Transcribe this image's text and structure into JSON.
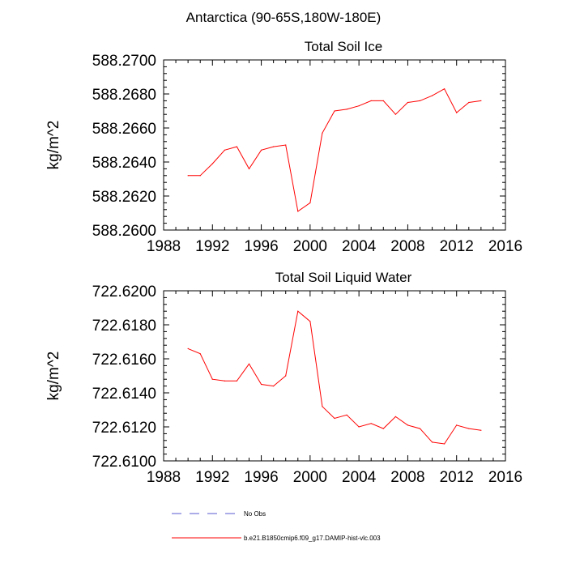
{
  "page_title": "Antarctica (90-65S,180W-180E)",
  "colors": {
    "series": "#ff0000",
    "no_obs": "#5a5ad2",
    "axis": "#000000"
  },
  "legend": [
    {
      "label": "No Obs",
      "style": "dashed",
      "color": "#5a5ad2"
    },
    {
      "label": "b.e21.B1850cmip6.f09_g17.DAMIP-hist-vlc.003",
      "style": "solid",
      "color": "#ff0000"
    }
  ],
  "chart_data": [
    {
      "type": "line",
      "title": "Total Soil Ice",
      "ylabel": "kg/m^2",
      "xlabel": "",
      "xlim": [
        1988,
        2016
      ],
      "ylim": [
        588.26,
        588.27
      ],
      "x_ticks": [
        1988,
        1992,
        1996,
        2000,
        2004,
        2008,
        2012,
        2016
      ],
      "x_tick_labels": [
        "1988",
        "1992",
        "1996",
        "2000",
        "2004",
        "2008",
        "2012",
        "2016"
      ],
      "y_ticks": [
        588.26,
        588.262,
        588.264,
        588.266,
        588.268,
        588.27
      ],
      "y_tick_labels": [
        "588.2600",
        "588.2620",
        "588.2640",
        "588.2660",
        "588.2680",
        "588.2700"
      ],
      "series": [
        {
          "name": "b.e21.B1850cmip6.f09_g17.DAMIP-hist-vlc.003",
          "x": [
            1990,
            1991,
            1992,
            1993,
            1994,
            1995,
            1996,
            1997,
            1998,
            1999,
            2000,
            2001,
            2002,
            2003,
            2004,
            2005,
            2006,
            2007,
            2008,
            2009,
            2010,
            2011,
            2012,
            2013,
            2014
          ],
          "values": [
            588.2632,
            588.2632,
            588.2639,
            588.2647,
            588.2649,
            588.2636,
            588.2647,
            588.2649,
            588.265,
            588.2611,
            588.2616,
            588.2657,
            588.267,
            588.2671,
            588.2673,
            588.2676,
            588.2676,
            588.2668,
            588.2675,
            588.2676,
            588.2679,
            588.2683,
            588.2669,
            588.2675,
            588.2676
          ]
        }
      ]
    },
    {
      "type": "line",
      "title": "Total Soil Liquid Water",
      "ylabel": "kg/m^2",
      "xlabel": "",
      "xlim": [
        1988,
        2016
      ],
      "ylim": [
        722.61,
        722.62
      ],
      "x_ticks": [
        1988,
        1992,
        1996,
        2000,
        2004,
        2008,
        2012,
        2016
      ],
      "x_tick_labels": [
        "1988",
        "1992",
        "1996",
        "2000",
        "2004",
        "2008",
        "2012",
        "2016"
      ],
      "y_ticks": [
        722.61,
        722.612,
        722.614,
        722.616,
        722.618,
        722.62
      ],
      "y_tick_labels": [
        "722.6100",
        "722.6120",
        "722.6140",
        "722.6160",
        "722.6180",
        "722.6200"
      ],
      "series": [
        {
          "name": "b.e21.B1850cmip6.f09_g17.DAMIP-hist-vlc.003",
          "x": [
            1990,
            1991,
            1992,
            1993,
            1994,
            1995,
            1996,
            1997,
            1998,
            1999,
            2000,
            2001,
            2002,
            2003,
            2004,
            2005,
            2006,
            2007,
            2008,
            2009,
            2010,
            2011,
            2012,
            2013,
            2014
          ],
          "values": [
            722.6166,
            722.6163,
            722.6148,
            722.6147,
            722.6147,
            722.6157,
            722.6145,
            722.6144,
            722.615,
            722.6188,
            722.6182,
            722.6132,
            722.6125,
            722.6127,
            722.612,
            722.6122,
            722.6119,
            722.6126,
            722.6121,
            722.6119,
            722.6111,
            722.611,
            722.6121,
            722.6119,
            722.6118
          ]
        }
      ]
    }
  ]
}
